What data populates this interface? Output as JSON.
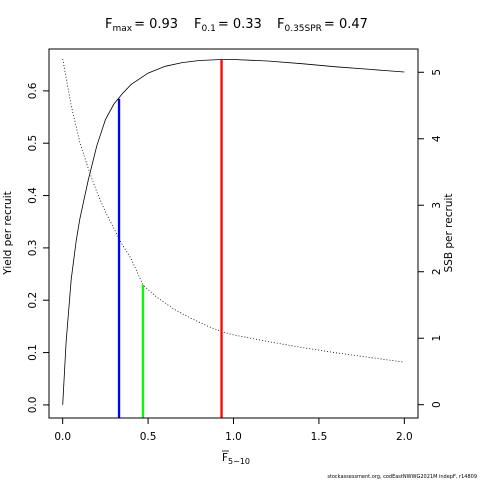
{
  "chart_data": {
    "type": "line",
    "title_parts": [
      {
        "main": "F",
        "sub": "max",
        "value": "= 0.93"
      },
      {
        "main": "F",
        "sub": "0.1",
        "value": "= 0.33"
      },
      {
        "main": "F",
        "sub": "0.35SPR",
        "value": "= 0.47"
      }
    ],
    "xlabel": {
      "main": "F",
      "sub": "5−10"
    },
    "ylabel_left": "Yield per recruit",
    "ylabel_right": "SSB per recruit",
    "xlim": [
      -0.08,
      2.08
    ],
    "ylim_left": [
      -0.025,
      0.68
    ],
    "ylim_right": [
      -0.2,
      5.35
    ],
    "x_ticks": [
      0,
      0.5,
      1,
      1.5,
      2
    ],
    "x_tick_labels": [
      "0.0",
      "0.5",
      "1.0",
      "1.5",
      "2.0"
    ],
    "y_left_ticks": [
      0,
      0.1,
      0.2,
      0.3,
      0.4,
      0.5,
      0.6
    ],
    "y_left_tick_labels": [
      "0.0",
      "0.1",
      "0.2",
      "0.3",
      "0.4",
      "0.5",
      "0.6"
    ],
    "y_right_ticks": [
      0,
      1,
      2,
      3,
      4,
      5
    ],
    "y_right_tick_labels": [
      "0",
      "1",
      "2",
      "3",
      "4",
      "5"
    ],
    "series": [
      {
        "axis": "left",
        "style": "solid",
        "color": "#000000",
        "x": [
          0,
          0.02,
          0.05,
          0.08,
          0.1,
          0.15,
          0.2,
          0.25,
          0.3,
          0.35,
          0.4,
          0.5,
          0.6,
          0.7,
          0.8,
          0.93,
          1.0,
          1.2,
          1.4,
          1.6,
          1.8,
          2.0
        ],
        "y": [
          0,
          0.12,
          0.24,
          0.315,
          0.355,
          0.43,
          0.495,
          0.545,
          0.575,
          0.595,
          0.612,
          0.634,
          0.647,
          0.654,
          0.658,
          0.66,
          0.66,
          0.657,
          0.652,
          0.646,
          0.641,
          0.636
        ]
      },
      {
        "axis": "right",
        "style": "dotted",
        "color": "#000000",
        "x": [
          0,
          0.05,
          0.1,
          0.15,
          0.2,
          0.25,
          0.3,
          0.35,
          0.4,
          0.47,
          0.55,
          0.65,
          0.75,
          0.85,
          0.93,
          1.0,
          1.2,
          1.4,
          1.6,
          1.8,
          2.0
        ],
        "y": [
          5.2,
          4.5,
          3.95,
          3.55,
          3.2,
          2.9,
          2.65,
          2.4,
          2.2,
          1.8,
          1.62,
          1.44,
          1.3,
          1.18,
          1.1,
          1.05,
          0.95,
          0.86,
          0.78,
          0.71,
          0.64
        ]
      }
    ],
    "reference_lines": [
      {
        "name": "F0.1",
        "x": 0.33,
        "y_to": 0.585,
        "axis": "left",
        "color": "#0000ff"
      },
      {
        "name": "F0.35SPR",
        "x": 0.47,
        "y_to": 1.8,
        "axis": "right",
        "color": "#00ff00"
      },
      {
        "name": "Fmax",
        "x": 0.93,
        "y_to": 0.66,
        "axis": "left",
        "color": "#ff0000"
      }
    ],
    "grid": false,
    "footer": "stockassessment.org, codEastNWWG2021M indepF, r14809"
  }
}
